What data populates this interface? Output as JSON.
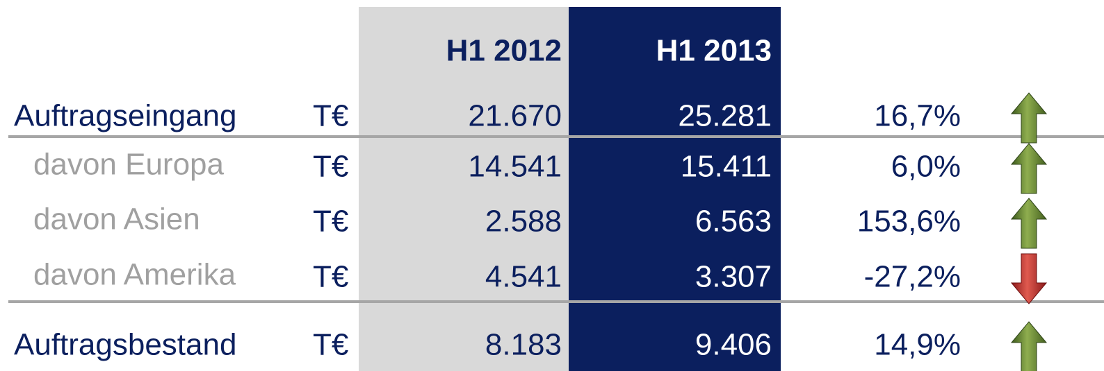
{
  "header": {
    "columns": [
      "H1 2012",
      "H1 2013"
    ]
  },
  "table": {
    "rows": [
      {
        "label": "Auftragseingang",
        "unit": "T€",
        "values": [
          "21.670",
          "25.281"
        ],
        "change": "16,7%",
        "trend": "up",
        "indent": false
      },
      {
        "label": "davon Europa",
        "unit": "T€",
        "values": [
          "14.541",
          "15.411"
        ],
        "change": "6,0%",
        "trend": "up",
        "indent": true
      },
      {
        "label": "davon Asien",
        "unit": "T€",
        "values": [
          "2.588",
          "6.563"
        ],
        "change": "153,6%",
        "trend": "up",
        "indent": true
      },
      {
        "label": "davon Amerika",
        "unit": "T€",
        "values": [
          "4.541",
          "3.307"
        ],
        "change": "-27,2%",
        "trend": "down",
        "indent": true
      },
      {
        "label": "Auftragsbestand",
        "unit": "T€",
        "values": [
          "8.183",
          "9.406"
        ],
        "change": "14,9%",
        "trend": "up",
        "indent": false
      }
    ]
  }
}
